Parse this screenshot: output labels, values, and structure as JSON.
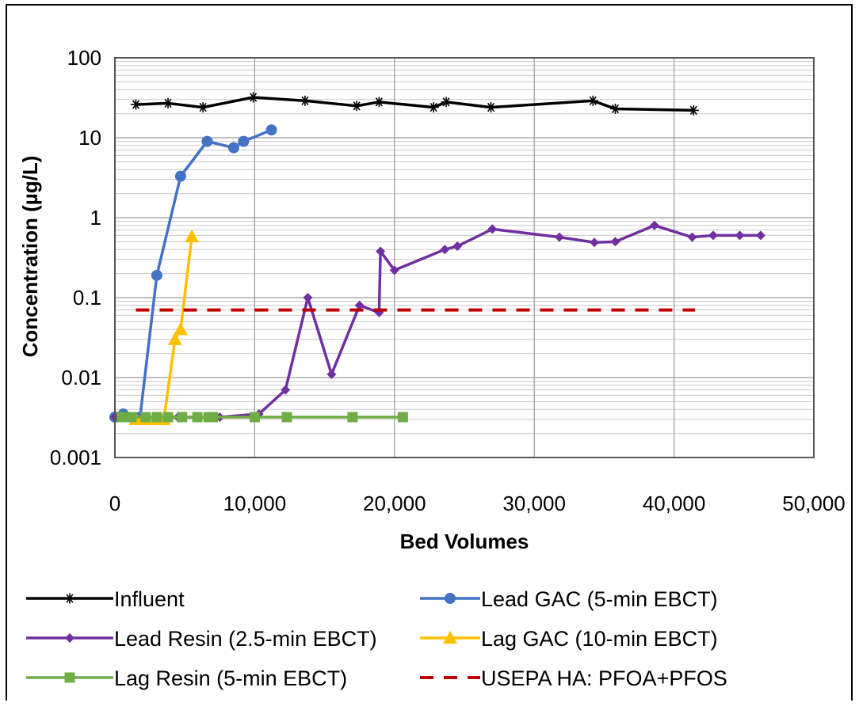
{
  "chart_data": {
    "type": "line",
    "title": "",
    "xlabel": "Bed Volumes",
    "ylabel": "Concentration (µg/L)",
    "y_scale": "log",
    "xlim": [
      0,
      50000
    ],
    "ylim": [
      0.001,
      100
    ],
    "grid": true,
    "x_tick_labels": [
      "0",
      "10,000",
      "20,000",
      "30,000",
      "40,000",
      "50,000"
    ],
    "x_ticks": [
      0,
      10000,
      20000,
      30000,
      40000,
      50000
    ],
    "y_tick_labels": [
      "0.001",
      "0.01",
      "0.1",
      "1",
      "10",
      "100"
    ],
    "y_ticks": [
      0.001,
      0.01,
      0.1,
      1,
      10,
      100
    ],
    "legend_position": "bottom",
    "series": [
      {
        "name": "Influent",
        "color": "#000000",
        "marker": "asterisk",
        "dash": "solid",
        "x": [
          1500,
          3800,
          6300,
          9900,
          13600,
          17300,
          18900,
          22800,
          23700,
          26900,
          34200,
          35800,
          41400
        ],
        "y": [
          26,
          27,
          24,
          32,
          29,
          25,
          28,
          24,
          28,
          24,
          29,
          23,
          22
        ]
      },
      {
        "name": "Lead GAC (5-min EBCT)",
        "color": "#4472C4",
        "marker": "circle",
        "dash": "solid",
        "x": [
          0,
          600,
          1800,
          3000,
          4700,
          6600,
          8500,
          9200,
          11200
        ],
        "y": [
          0.0032,
          0.0035,
          0.0032,
          0.19,
          3.3,
          9,
          7.5,
          9,
          12.5
        ]
      },
      {
        "name": "Lead Resin (2.5-min EBCT)",
        "color": "#7030A0",
        "marker": "diamond",
        "dash": "solid",
        "x": [
          0,
          2000,
          4500,
          7500,
          10300,
          12200,
          13800,
          15500,
          17500,
          18900,
          19000,
          20000,
          23600,
          24500,
          27000,
          31800,
          34300,
          35800,
          38600,
          41300,
          42800,
          44700,
          46200
        ],
        "y": [
          0.0032,
          0.0032,
          0.0032,
          0.0032,
          0.0035,
          0.007,
          0.1,
          0.011,
          0.08,
          0.065,
          0.38,
          0.22,
          0.4,
          0.44,
          0.72,
          0.57,
          0.49,
          0.5,
          0.8,
          0.57,
          0.6,
          0.6,
          0.6
        ]
      },
      {
        "name": "Lag GAC (10-min EBCT)",
        "color": "#FFC000",
        "marker": "triangle",
        "dash": "solid",
        "x": [
          1500,
          2300,
          3000,
          3500,
          4300,
          4700,
          5500
        ],
        "y": [
          0.003,
          0.003,
          0.003,
          0.003,
          0.03,
          0.04,
          0.58
        ]
      },
      {
        "name": "Lag Resin (5-min EBCT)",
        "color": "#70AD47",
        "marker": "square",
        "dash": "solid",
        "x": [
          500,
          1200,
          2200,
          3000,
          3800,
          4800,
          5900,
          6700,
          7000,
          10000,
          12300,
          17000,
          20600
        ],
        "y": [
          0.0032,
          0.0032,
          0.0032,
          0.0032,
          0.0032,
          0.0032,
          0.0032,
          0.0032,
          0.0032,
          0.0032,
          0.0032,
          0.0032,
          0.0032
        ]
      },
      {
        "name": "USEPA HA: PFOA+PFOS",
        "color": "#C00000",
        "marker": "none",
        "dash": "dashed",
        "x": [
          1500,
          41500
        ],
        "y": [
          0.07,
          0.07
        ]
      }
    ]
  }
}
